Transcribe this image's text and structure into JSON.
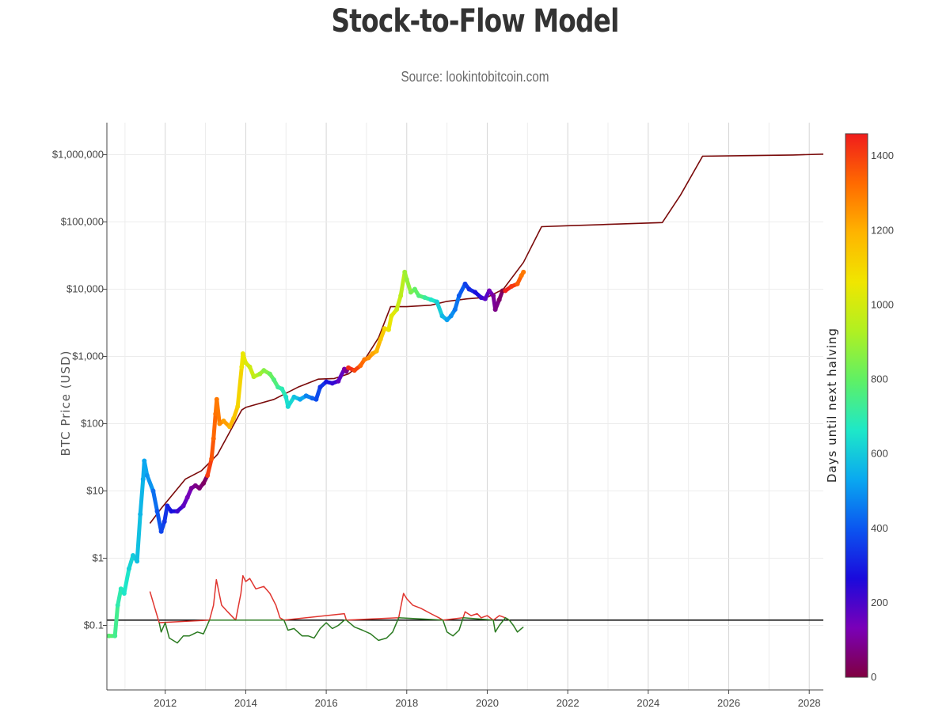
{
  "title": "Stock-to-Flow Model",
  "subtitle": "Source: lookintobitcoin.com",
  "chart_data": {
    "type": "scatter",
    "ylabel": "BTC Price (USD)",
    "y_scale": "log",
    "xlim": [
      2010.55,
      2028.35
    ],
    "ylim": [
      0.011,
      3000000
    ],
    "x_ticks": [
      2012,
      2014,
      2016,
      2018,
      2020,
      2022,
      2024,
      2026,
      2028
    ],
    "x_tick_labels": [
      "2012",
      "2014",
      "2016",
      "2018",
      "2020",
      "2022",
      "2024",
      "2026",
      "2028"
    ],
    "y_ticks": [
      0.1,
      1,
      10,
      100,
      1000,
      10000,
      100000,
      1000000
    ],
    "y_tick_labels": [
      "$0.1",
      "$1",
      "$10",
      "$100",
      "$1,000",
      "$10,000",
      "$100,000",
      "$1,000,000"
    ],
    "grid": true,
    "reference_line": {
      "y": 0.12,
      "color": "#000000"
    },
    "colorbar": {
      "title": "Days until next halving",
      "min": 0,
      "max": 1460,
      "ticks": [
        0,
        200,
        400,
        600,
        800,
        1000,
        1200,
        1400
      ],
      "colorscale": [
        "#800040",
        "#7a00b8",
        "#1a0adc",
        "#0b55f0",
        "#0aa8f0",
        "#1ee8c8",
        "#5ef066",
        "#b0f022",
        "#f0e600",
        "#ffb400",
        "#ff6a00",
        "#f01c1c"
      ]
    },
    "series": [
      {
        "type": "line",
        "color": "#7a0a0a",
        "points": [
          [
            2011.62,
            3.3
          ],
          [
            2011.9,
            5.5
          ],
          [
            2012.5,
            15
          ],
          [
            2012.9,
            20
          ],
          [
            2013.3,
            35
          ],
          [
            2013.9,
            160
          ],
          [
            2014.0,
            175
          ],
          [
            2014.7,
            230
          ],
          [
            2015.3,
            350
          ],
          [
            2015.8,
            460
          ],
          [
            2016.2,
            470
          ],
          [
            2016.55,
            550
          ],
          [
            2016.9,
            800
          ],
          [
            2017.3,
            1900
          ],
          [
            2017.6,
            5500
          ],
          [
            2018.0,
            5500
          ],
          [
            2018.6,
            5800
          ],
          [
            2019.0,
            6600
          ],
          [
            2019.5,
            7200
          ],
          [
            2020.0,
            7600
          ],
          [
            2020.4,
            10000
          ],
          [
            2020.9,
            25000
          ],
          [
            2021.35,
            85000
          ],
          [
            2022.0,
            88000
          ],
          [
            2023.0,
            92000
          ],
          [
            2024.35,
            98000
          ],
          [
            2024.8,
            250000
          ],
          [
            2025.35,
            950000
          ],
          [
            2026.5,
            970000
          ],
          [
            2027.6,
            990000
          ],
          [
            2028.35,
            1020000
          ]
        ]
      },
      {
        "type": "scatter",
        "color_by": "days_until_halving",
        "points": [
          [
            2010.6,
            0.07,
            780
          ],
          [
            2010.75,
            0.07,
            740
          ],
          [
            2010.82,
            0.2,
            700
          ],
          [
            2010.9,
            0.35,
            680
          ],
          [
            2010.98,
            0.3,
            660
          ],
          [
            2011.1,
            0.7,
            620
          ],
          [
            2011.2,
            1.1,
            600
          ],
          [
            2011.3,
            0.9,
            580
          ],
          [
            2011.38,
            4.5,
            560
          ],
          [
            2011.45,
            15,
            540
          ],
          [
            2011.48,
            28,
            530
          ],
          [
            2011.55,
            17,
            500
          ],
          [
            2011.7,
            10,
            440
          ],
          [
            2011.8,
            5,
            400
          ],
          [
            2011.9,
            2.5,
            370
          ],
          [
            2011.98,
            3.5,
            340
          ],
          [
            2012.05,
            6,
            310
          ],
          [
            2012.15,
            5,
            270
          ],
          [
            2012.3,
            5,
            220
          ],
          [
            2012.45,
            6,
            170
          ],
          [
            2012.55,
            8,
            140
          ],
          [
            2012.65,
            11,
            100
          ],
          [
            2012.75,
            12,
            80
          ],
          [
            2012.85,
            11,
            60
          ],
          [
            2012.95,
            13,
            40
          ],
          [
            2013.05,
            17,
            1400
          ],
          [
            2013.15,
            30,
            1360
          ],
          [
            2013.2,
            60,
            1330
          ],
          [
            2013.25,
            140,
            1310
          ],
          [
            2013.28,
            230,
            1300
          ],
          [
            2013.35,
            100,
            1270
          ],
          [
            2013.45,
            110,
            1230
          ],
          [
            2013.6,
            90,
            1190
          ],
          [
            2013.7,
            120,
            1150
          ],
          [
            2013.8,
            180,
            1110
          ],
          [
            2013.9,
            700,
            1060
          ],
          [
            2013.93,
            1100,
            1050
          ],
          [
            2014.0,
            800,
            1020
          ],
          [
            2014.1,
            700,
            990
          ],
          [
            2014.2,
            500,
            950
          ],
          [
            2014.35,
            550,
            900
          ],
          [
            2014.45,
            620,
            860
          ],
          [
            2014.6,
            550,
            810
          ],
          [
            2014.7,
            450,
            770
          ],
          [
            2014.8,
            350,
            730
          ],
          [
            2014.9,
            330,
            690
          ],
          [
            2015.0,
            250,
            650
          ],
          [
            2015.05,
            180,
            630
          ],
          [
            2015.2,
            250,
            580
          ],
          [
            2015.35,
            230,
            530
          ],
          [
            2015.5,
            260,
            470
          ],
          [
            2015.65,
            240,
            420
          ],
          [
            2015.75,
            230,
            380
          ],
          [
            2015.85,
            350,
            340
          ],
          [
            2016.0,
            420,
            280
          ],
          [
            2016.15,
            400,
            230
          ],
          [
            2016.3,
            430,
            170
          ],
          [
            2016.45,
            650,
            110
          ],
          [
            2016.5,
            600,
            80
          ],
          [
            2016.55,
            680,
            1430
          ],
          [
            2016.7,
            620,
            1390
          ],
          [
            2016.85,
            730,
            1330
          ],
          [
            2016.95,
            900,
            1300
          ],
          [
            2017.05,
            950,
            1260
          ],
          [
            2017.15,
            1100,
            1220
          ],
          [
            2017.25,
            1200,
            1180
          ],
          [
            2017.35,
            1800,
            1140
          ],
          [
            2017.45,
            2600,
            1100
          ],
          [
            2017.55,
            2500,
            1050
          ],
          [
            2017.62,
            4000,
            1030
          ],
          [
            2017.75,
            5000,
            980
          ],
          [
            2017.85,
            8000,
            950
          ],
          [
            2017.95,
            18000,
            900
          ],
          [
            2018.0,
            14000,
            880
          ],
          [
            2018.1,
            9000,
            840
          ],
          [
            2018.2,
            10000,
            800
          ],
          [
            2018.3,
            8000,
            770
          ],
          [
            2018.45,
            7500,
            720
          ],
          [
            2018.6,
            7000,
            660
          ],
          [
            2018.75,
            6500,
            610
          ],
          [
            2018.88,
            4000,
            560
          ],
          [
            2019.0,
            3500,
            520
          ],
          [
            2019.1,
            4000,
            490
          ],
          [
            2019.2,
            5000,
            450
          ],
          [
            2019.3,
            8000,
            410
          ],
          [
            2019.45,
            12000,
            360
          ],
          [
            2019.55,
            10000,
            320
          ],
          [
            2019.7,
            9000,
            270
          ],
          [
            2019.85,
            7500,
            220
          ],
          [
            2019.95,
            7200,
            180
          ],
          [
            2020.05,
            9500,
            140
          ],
          [
            2020.15,
            8000,
            100
          ],
          [
            2020.2,
            5000,
            80
          ],
          [
            2020.3,
            7000,
            50
          ],
          [
            2020.38,
            9500,
            10
          ],
          [
            2020.45,
            9500,
            1450
          ],
          [
            2020.6,
            11000,
            1410
          ],
          [
            2020.75,
            12000,
            1350
          ],
          [
            2020.85,
            16000,
            1310
          ],
          [
            2020.9,
            18000,
            1300
          ]
        ]
      },
      {
        "type": "line",
        "name": "ratio_above_reference",
        "color": "#e0352f",
        "points": [
          [
            2011.62,
            0.32
          ],
          [
            2011.72,
            0.2
          ],
          [
            2011.85,
            0.11
          ],
          [
            2013.1,
            0.12
          ],
          [
            2013.2,
            0.2
          ],
          [
            2013.27,
            0.48
          ],
          [
            2013.4,
            0.2
          ],
          [
            2013.55,
            0.16
          ],
          [
            2013.75,
            0.12
          ],
          [
            2013.88,
            0.3
          ],
          [
            2013.93,
            0.55
          ],
          [
            2014.0,
            0.45
          ],
          [
            2014.1,
            0.5
          ],
          [
            2014.25,
            0.35
          ],
          [
            2014.45,
            0.38
          ],
          [
            2014.6,
            0.3
          ],
          [
            2014.75,
            0.2
          ],
          [
            2014.85,
            0.13
          ],
          [
            2014.95,
            0.12
          ],
          [
            2016.45,
            0.15
          ],
          [
            2016.5,
            0.12
          ],
          [
            2017.8,
            0.13
          ],
          [
            2017.92,
            0.3
          ],
          [
            2018.0,
            0.25
          ],
          [
            2018.15,
            0.2
          ],
          [
            2018.35,
            0.18
          ],
          [
            2018.6,
            0.15
          ],
          [
            2018.8,
            0.13
          ],
          [
            2018.9,
            0.12
          ],
          [
            2019.4,
            0.13
          ],
          [
            2019.45,
            0.16
          ],
          [
            2019.6,
            0.14
          ],
          [
            2019.75,
            0.15
          ],
          [
            2019.85,
            0.13
          ],
          [
            2020.0,
            0.14
          ],
          [
            2020.15,
            0.12
          ],
          [
            2020.3,
            0.14
          ],
          [
            2020.45,
            0.13
          ],
          [
            2020.55,
            0.12
          ]
        ]
      },
      {
        "type": "line",
        "name": "ratio_below_reference",
        "color": "#2a7a20",
        "points": [
          [
            2011.85,
            0.11
          ],
          [
            2011.9,
            0.08
          ],
          [
            2012.0,
            0.11
          ],
          [
            2012.1,
            0.065
          ],
          [
            2012.3,
            0.055
          ],
          [
            2012.45,
            0.07
          ],
          [
            2012.6,
            0.07
          ],
          [
            2012.8,
            0.08
          ],
          [
            2012.95,
            0.075
          ],
          [
            2013.1,
            0.12
          ],
          [
            2014.95,
            0.12
          ],
          [
            2015.05,
            0.085
          ],
          [
            2015.2,
            0.09
          ],
          [
            2015.4,
            0.07
          ],
          [
            2015.55,
            0.07
          ],
          [
            2015.7,
            0.065
          ],
          [
            2015.85,
            0.09
          ],
          [
            2016.0,
            0.11
          ],
          [
            2016.15,
            0.09
          ],
          [
            2016.3,
            0.1
          ],
          [
            2016.45,
            0.12
          ],
          [
            2016.5,
            0.12
          ],
          [
            2016.7,
            0.095
          ],
          [
            2016.9,
            0.085
          ],
          [
            2017.1,
            0.075
          ],
          [
            2017.3,
            0.06
          ],
          [
            2017.5,
            0.065
          ],
          [
            2017.65,
            0.08
          ],
          [
            2017.8,
            0.13
          ],
          [
            2018.9,
            0.12
          ],
          [
            2019.0,
            0.08
          ],
          [
            2019.15,
            0.07
          ],
          [
            2019.3,
            0.085
          ],
          [
            2019.4,
            0.13
          ],
          [
            2020.15,
            0.12
          ],
          [
            2020.2,
            0.08
          ],
          [
            2020.3,
            0.1
          ],
          [
            2020.45,
            0.13
          ],
          [
            2020.55,
            0.12
          ],
          [
            2020.65,
            0.1
          ],
          [
            2020.75,
            0.08
          ],
          [
            2020.85,
            0.09
          ],
          [
            2020.9,
            0.095
          ]
        ]
      }
    ]
  }
}
